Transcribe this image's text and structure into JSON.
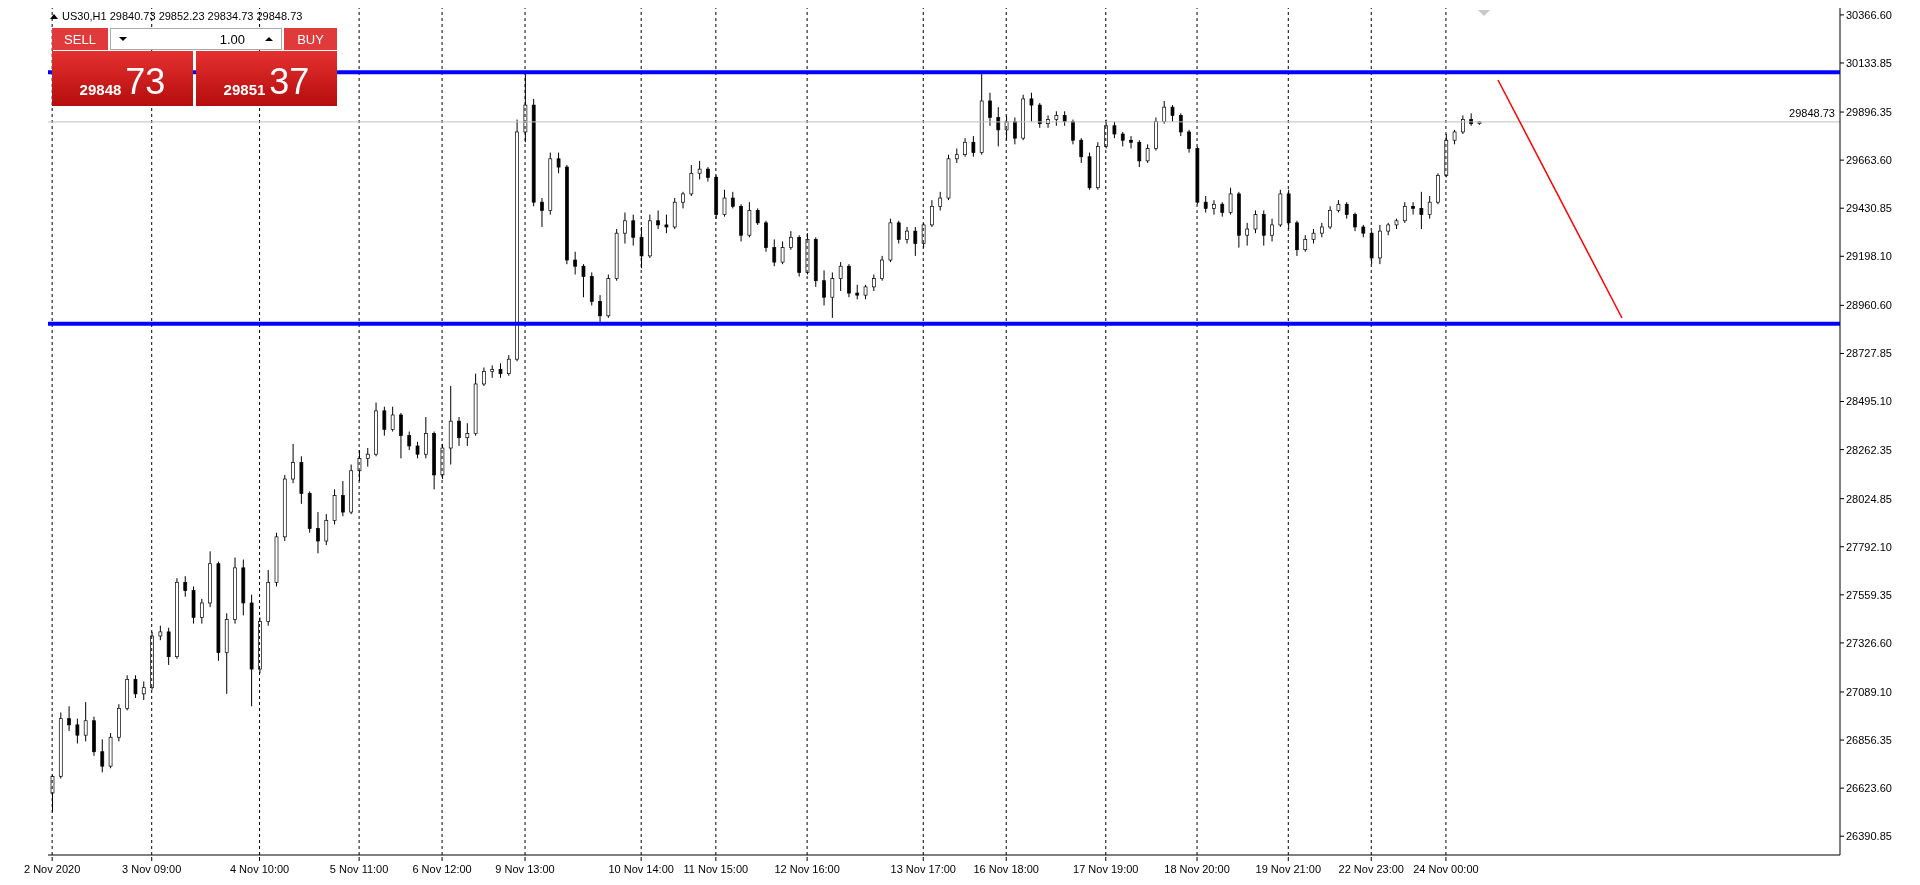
{
  "chart_data": {
    "type": "candlestick",
    "title": "US30,H1 29840.73 29852.23 29834.73 29848.73",
    "annotations": [
      "SELL",
      "1.00",
      "BUY",
      "29848",
      "73",
      "29851",
      "37"
    ],
    "color": "#000000",
    "categories": [
      "2 Nov 2020",
      null,
      null,
      null,
      null,
      null,
      null,
      null,
      null,
      null,
      null,
      null,
      "3 Nov 09:00",
      null,
      null,
      null,
      null,
      null,
      null,
      null,
      null,
      null,
      null,
      null,
      null,
      "4 Nov 10:00",
      null,
      null,
      null,
      null,
      null,
      null,
      null,
      null,
      null,
      null,
      null,
      "5 Nov 11:00",
      null,
      null,
      null,
      null,
      null,
      null,
      null,
      null,
      null,
      "6 Nov 12:00",
      null,
      null,
      null,
      null,
      null,
      null,
      null,
      null,
      null,
      "9 Nov 13:00",
      null,
      null,
      null,
      null,
      null,
      null,
      null,
      null,
      null,
      null,
      null,
      null,
      null,
      "10 Nov 14:00",
      null,
      null,
      null,
      null,
      null,
      null,
      null,
      null,
      "11 Nov 15:00",
      null,
      null,
      null,
      null,
      null,
      null,
      null,
      null,
      null,
      null,
      "12 Nov 16:00",
      null,
      null,
      null,
      null,
      null,
      null,
      null,
      null,
      null,
      null,
      null,
      null,
      null,
      "13 Nov 17:00",
      null,
      null,
      null,
      null,
      null,
      null,
      null,
      null,
      null,
      "16 Nov 18:00",
      null,
      null,
      null,
      null,
      null,
      null,
      null,
      null,
      null,
      null,
      null,
      "17 Nov 19:00",
      null,
      null,
      null,
      null,
      null,
      null,
      null,
      null,
      null,
      null,
      "18 Nov 20:00",
      null,
      null,
      null,
      null,
      null,
      null,
      null,
      null,
      null,
      null,
      "19 Nov 21:00",
      null,
      null,
      null,
      null,
      null,
      null,
      null,
      null,
      null,
      "22 Nov 23:00",
      null,
      null,
      null,
      null,
      null,
      null,
      null,
      null,
      "24 Nov 00:00",
      null,
      null,
      null,
      null,
      null,
      null,
      null,
      null,
      null,
      null,
      null,
      null,
      null,
      null,
      null,
      null,
      null,
      null,
      null,
      null,
      null,
      null,
      null,
      null,
      null,
      null,
      null,
      null,
      null,
      null,
      null,
      null,
      null,
      null,
      null,
      null,
      null,
      null,
      null,
      null,
      null,
      null,
      null,
      null,
      null,
      null,
      null
    ],
    "ohlc": [
      [
        26600,
        26690,
        26507,
        26681
      ],
      [
        26681,
        26990,
        26670,
        26960
      ],
      [
        26960,
        27020,
        26900,
        26930
      ],
      [
        26930,
        26960,
        26840,
        26880
      ],
      [
        26880,
        27040,
        26850,
        26950
      ],
      [
        26950,
        26970,
        26780,
        26800
      ],
      [
        26800,
        26860,
        26700,
        26730
      ],
      [
        26730,
        26890,
        26720,
        26870
      ],
      [
        26870,
        27030,
        26850,
        27010
      ],
      [
        27010,
        27170,
        27000,
        27150
      ],
      [
        27150,
        27170,
        27060,
        27080
      ],
      [
        27080,
        27140,
        27050,
        27110
      ],
      [
        27110,
        27380,
        27100,
        27360
      ],
      [
        27360,
        27410,
        27340,
        27380
      ],
      [
        27380,
        27400,
        27220,
        27260
      ],
      [
        27260,
        27640,
        27250,
        27620
      ],
      [
        27620,
        27650,
        27550,
        27580
      ],
      [
        27580,
        27600,
        27420,
        27450
      ],
      [
        27450,
        27540,
        27420,
        27520
      ],
      [
        27520,
        27770,
        27500,
        27710
      ],
      [
        27710,
        27720,
        27240,
        27280
      ],
      [
        27280,
        27470,
        27080,
        27440
      ],
      [
        27440,
        27740,
        27420,
        27690
      ],
      [
        27690,
        27730,
        27460,
        27520
      ],
      [
        27520,
        27560,
        27020,
        27200
      ],
      [
        27200,
        27450,
        27180,
        27430
      ],
      [
        27430,
        27680,
        27410,
        27620
      ],
      [
        27620,
        27860,
        27600,
        27840
      ],
      [
        27840,
        28140,
        27820,
        28120
      ],
      [
        28120,
        28290,
        28100,
        28200
      ],
      [
        28200,
        28230,
        28000,
        28050
      ],
      [
        28050,
        28060,
        27860,
        27880
      ],
      [
        27880,
        27960,
        27760,
        27820
      ],
      [
        27820,
        27950,
        27800,
        27920
      ],
      [
        27920,
        28070,
        27900,
        28040
      ],
      [
        28040,
        28110,
        27940,
        27960
      ],
      [
        27960,
        28190,
        27950,
        28160
      ],
      [
        28160,
        28260,
        28110,
        28220
      ],
      [
        28220,
        28270,
        28180,
        28240
      ],
      [
        28240,
        28490,
        28230,
        28450
      ],
      [
        28450,
        28470,
        28330,
        28360
      ],
      [
        28360,
        28470,
        28350,
        28430
      ],
      [
        28430,
        28440,
        28220,
        28330
      ],
      [
        28330,
        28350,
        28260,
        28280
      ],
      [
        28280,
        28300,
        28220,
        28240
      ],
      [
        28240,
        28420,
        28220,
        28340
      ],
      [
        28340,
        28350,
        28070,
        28140
      ],
      [
        28140,
        28290,
        28120,
        28270
      ],
      [
        28270,
        28570,
        28190,
        28400
      ],
      [
        28400,
        28420,
        28280,
        28320
      ],
      [
        28320,
        28390,
        28280,
        28340
      ],
      [
        28340,
        28630,
        28330,
        28580
      ],
      [
        28580,
        28660,
        28570,
        28640
      ],
      [
        28640,
        28670,
        28610,
        28650
      ],
      [
        28650,
        28680,
        28610,
        28630
      ],
      [
        28630,
        28720,
        28620,
        28700
      ],
      [
        28700,
        29860,
        28690,
        29800
      ],
      [
        29800,
        30080,
        29750,
        29930
      ],
      [
        29930,
        29960,
        29440,
        29460
      ],
      [
        29460,
        29480,
        29340,
        29420
      ],
      [
        29420,
        29700,
        29400,
        29670
      ],
      [
        29670,
        29700,
        29600,
        29630
      ],
      [
        29630,
        29640,
        29160,
        29180
      ],
      [
        29180,
        29220,
        29110,
        29150
      ],
      [
        29150,
        29160,
        29000,
        29100
      ],
      [
        29100,
        29120,
        28960,
        28980
      ],
      [
        28980,
        29010,
        28880,
        28910
      ],
      [
        28910,
        29110,
        28900,
        29090
      ],
      [
        29090,
        29330,
        29080,
        29310
      ],
      [
        29310,
        29410,
        29260,
        29370
      ],
      [
        29370,
        29400,
        29250,
        29290
      ],
      [
        29290,
        29340,
        29140,
        29200
      ],
      [
        29200,
        29400,
        29190,
        29370
      ],
      [
        29370,
        29420,
        29330,
        29350
      ],
      [
        29350,
        29400,
        29310,
        29340
      ],
      [
        29340,
        29480,
        29330,
        29460
      ],
      [
        29460,
        29510,
        29430,
        29500
      ],
      [
        29500,
        29640,
        29490,
        29600
      ],
      [
        29600,
        29660,
        29570,
        29620
      ],
      [
        29620,
        29630,
        29560,
        29580
      ],
      [
        29580,
        29590,
        29380,
        29400
      ],
      [
        29400,
        29520,
        29390,
        29480
      ],
      [
        29480,
        29510,
        29430,
        29440
      ],
      [
        29440,
        29450,
        29270,
        29300
      ],
      [
        29300,
        29460,
        29290,
        29420
      ],
      [
        29420,
        29430,
        29350,
        29360
      ],
      [
        29360,
        29370,
        29220,
        29240
      ],
      [
        29240,
        29280,
        29150,
        29170
      ],
      [
        29170,
        29270,
        29160,
        29240
      ],
      [
        29240,
        29320,
        29230,
        29290
      ],
      [
        29290,
        29300,
        29100,
        29120
      ],
      [
        29120,
        29310,
        29110,
        29280
      ],
      [
        29280,
        29290,
        29050,
        29080
      ],
      [
        29080,
        29130,
        28960,
        29000
      ],
      [
        29000,
        29120,
        28900,
        29090
      ],
      [
        29090,
        29170,
        29030,
        29150
      ],
      [
        29150,
        29160,
        29000,
        29020
      ],
      [
        29020,
        29060,
        28990,
        29010
      ],
      [
        29010,
        29060,
        28990,
        29050
      ],
      [
        29050,
        29110,
        29030,
        29090
      ],
      [
        29090,
        29200,
        29080,
        29180
      ],
      [
        29180,
        29380,
        29170,
        29360
      ],
      [
        29360,
        29370,
        29260,
        29280
      ],
      [
        29280,
        29340,
        29260,
        29320
      ],
      [
        29320,
        29340,
        29200,
        29260
      ],
      [
        29260,
        29360,
        29240,
        29350
      ],
      [
        29350,
        29470,
        29340,
        29440
      ],
      [
        29440,
        29510,
        29420,
        29480
      ],
      [
        29480,
        29690,
        29470,
        29670
      ],
      [
        29670,
        29720,
        29650,
        29690
      ],
      [
        29690,
        29770,
        29680,
        29750
      ],
      [
        29750,
        29780,
        29680,
        29700
      ],
      [
        29700,
        30080,
        29690,
        29950
      ],
      [
        29950,
        29990,
        29830,
        29870
      ],
      [
        29870,
        29920,
        29730,
        29810
      ],
      [
        29810,
        29880,
        29760,
        29850
      ],
      [
        29850,
        29870,
        29740,
        29770
      ],
      [
        29770,
        29980,
        29760,
        29960
      ],
      [
        29960,
        29990,
        29850,
        29930
      ],
      [
        29930,
        29940,
        29820,
        29840
      ],
      [
        29840,
        29880,
        29820,
        29860
      ],
      [
        29860,
        29900,
        29830,
        29880
      ],
      [
        29880,
        29900,
        29830,
        29850
      ],
      [
        29850,
        29860,
        29740,
        29760
      ],
      [
        29760,
        29770,
        29650,
        29680
      ],
      [
        29680,
        29700,
        29520,
        29530
      ],
      [
        29530,
        29750,
        29520,
        29730
      ],
      [
        29730,
        29860,
        29720,
        29830
      ],
      [
        29830,
        29850,
        29770,
        29790
      ],
      [
        29790,
        29800,
        29730,
        29760
      ],
      [
        29760,
        29780,
        29720,
        29750
      ],
      [
        29750,
        29760,
        29630,
        29660
      ],
      [
        29660,
        29740,
        29650,
        29720
      ],
      [
        29720,
        29870,
        29710,
        29850
      ],
      [
        29850,
        29950,
        29840,
        29920
      ],
      [
        29920,
        29930,
        29850,
        29880
      ],
      [
        29880,
        29890,
        29780,
        29800
      ],
      [
        29800,
        29810,
        29700,
        29720
      ],
      [
        29720,
        29730,
        29450,
        29460
      ],
      [
        29460,
        29490,
        29410,
        29430
      ],
      [
        29430,
        29470,
        29400,
        29450
      ],
      [
        29450,
        29460,
        29390,
        29410
      ],
      [
        29410,
        29530,
        29400,
        29500
      ],
      [
        29500,
        29510,
        29240,
        29300
      ],
      [
        29300,
        29360,
        29250,
        29330
      ],
      [
        29330,
        29420,
        29310,
        29400
      ],
      [
        29400,
        29420,
        29250,
        29300
      ],
      [
        29300,
        29380,
        29270,
        29350
      ],
      [
        29350,
        29520,
        29340,
        29500
      ],
      [
        29500,
        29520,
        29330,
        29360
      ],
      [
        29360,
        29370,
        29200,
        29230
      ],
      [
        29230,
        29300,
        29220,
        29280
      ],
      [
        29280,
        29330,
        29260,
        29310
      ],
      [
        29310,
        29360,
        29290,
        29340
      ],
      [
        29340,
        29440,
        29330,
        29420
      ],
      [
        29420,
        29470,
        29410,
        29450
      ],
      [
        29450,
        29460,
        29380,
        29400
      ],
      [
        29400,
        29410,
        29320,
        29340
      ],
      [
        29340,
        29350,
        29290,
        29310
      ],
      [
        29310,
        29320,
        29160,
        29190
      ],
      [
        29190,
        29350,
        29160,
        29320
      ],
      [
        29320,
        29360,
        29300,
        29350
      ],
      [
        29350,
        29380,
        29330,
        29370
      ],
      [
        29370,
        29460,
        29360,
        29440
      ],
      [
        29440,
        29460,
        29400,
        29430
      ],
      [
        29430,
        29510,
        29330,
        29400
      ],
      [
        29400,
        29490,
        29380,
        29460
      ],
      [
        29460,
        29600,
        29450,
        29590
      ],
      [
        29590,
        29790,
        29580,
        29760
      ],
      [
        29760,
        29810,
        29740,
        29800
      ],
      [
        29800,
        29880,
        29790,
        29860
      ],
      [
        29860,
        29890,
        29830,
        29840
      ],
      [
        29840.73,
        29852.23,
        29834.73,
        29848.73
      ],
      null,
      null,
      null,
      null,
      null,
      null,
      null,
      null,
      null,
      null,
      null,
      null,
      null,
      null,
      null,
      null,
      null,
      null,
      null,
      null,
      null,
      null,
      null,
      null,
      null,
      null,
      null,
      null,
      null,
      null,
      null,
      null,
      null,
      null,
      null,
      null,
      null,
      null,
      null,
      null,
      null,
      null,
      null
    ],
    "ref_lines": [
      {
        "axis": "y",
        "value": 29848.73,
        "label": "29848.73",
        "color": "#c0c0c0"
      },
      {
        "axis": "y",
        "value": 30089,
        "color": "#0000ff"
      },
      {
        "axis": "y",
        "value": 28872,
        "color": "#0000ff"
      }
    ],
    "ylim": [
      26300,
      30400
    ],
    "yticks": [
      {
        "value": 30366.6,
        "label": "30366.60"
      },
      {
        "value": 30133.85,
        "label": "30133.85"
      },
      {
        "value": 29896.35,
        "label": "29896.35"
      },
      {
        "value": 29663.6,
        "label": "29663.60"
      },
      {
        "value": 29430.85,
        "label": "29430.85"
      },
      {
        "value": 29198.1,
        "label": "29198.10"
      },
      {
        "value": 28960.6,
        "label": "28960.60"
      },
      {
        "value": 28727.85,
        "label": "28727.85"
      },
      {
        "value": 28495.1,
        "label": "28495.10"
      },
      {
        "value": 28262.35,
        "label": "28262.35"
      },
      {
        "value": 28024.85,
        "label": "28024.85"
      },
      {
        "value": 27792.1,
        "label": "27792.10"
      },
      {
        "value": 27559.35,
        "label": "27559.35"
      },
      {
        "value": 27326.6,
        "label": "27326.60"
      },
      {
        "value": 27089.1,
        "label": "27089.10"
      },
      {
        "value": 26856.35,
        "label": "26856.35"
      },
      {
        "value": 26623.6,
        "label": "26623.60"
      },
      {
        "value": 26390.85,
        "label": "26390.85"
      }
    ],
    "grid": "x"
  }
}
